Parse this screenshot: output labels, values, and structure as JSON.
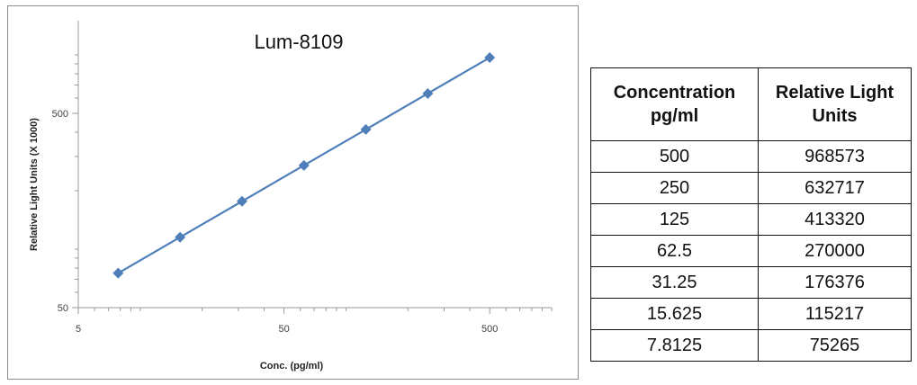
{
  "chart_data": {
    "type": "line",
    "title": "Lum-8109",
    "xlabel": "Conc. (pg/ml)",
    "ylabel": "Relative Light Units (X 1000)",
    "x_scale": "log",
    "y_scale": "log",
    "xlim": [
      5,
      1000
    ],
    "ylim": [
      50,
      1500
    ],
    "x_ticks": [
      5,
      50,
      500
    ],
    "y_ticks": [
      50,
      500
    ],
    "grid": false,
    "marker": "diamond",
    "color": "#4f7fb9",
    "series": [
      {
        "x": [
          7.8125,
          15.625,
          31.25,
          62.5,
          125,
          250,
          500
        ],
        "y": [
          75.265,
          115.217,
          176.376,
          270.0,
          413.32,
          632.717,
          968.573
        ]
      }
    ]
  },
  "table": {
    "headers": [
      [
        "Concentration",
        "pg/ml"
      ],
      [
        "Relative Light",
        "Units"
      ]
    ],
    "rows": [
      [
        "500",
        "968573"
      ],
      [
        "250",
        "632717"
      ],
      [
        "125",
        "413320"
      ],
      [
        "62.5",
        "270000"
      ],
      [
        "31.25",
        "176376"
      ],
      [
        "15.625",
        "115217"
      ],
      [
        "7.8125",
        "75265"
      ]
    ]
  }
}
